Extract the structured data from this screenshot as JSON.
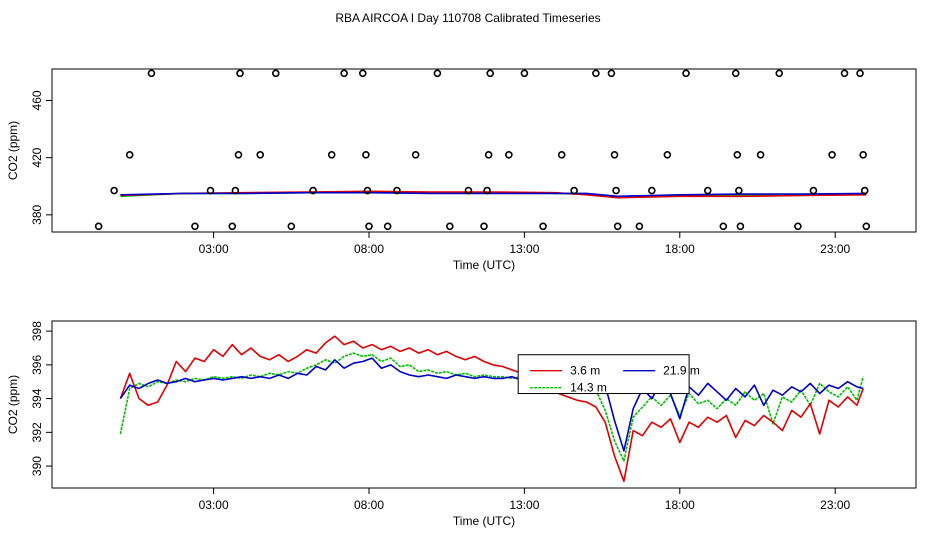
{
  "title": "RBA AIRCOA I  Day 110708  Calibrated Timeseries",
  "colors": {
    "red": "#e00000",
    "green": "#00c000",
    "blue": "#0000c8",
    "black": "#000000"
  },
  "chart_data": [
    {
      "type": "line",
      "name": "raw-panel",
      "xlabel": "Time (UTC)",
      "ylabel": "CO2 (ppm)",
      "xlim": [
        -2.2,
        25.6
      ],
      "ylim": [
        368,
        482
      ],
      "xticks": [
        3,
        8,
        13,
        18,
        23
      ],
      "xtick_labels": [
        "03:00",
        "08:00",
        "13:00",
        "18:00",
        "23:00"
      ],
      "yticks": [
        380,
        420,
        460
      ],
      "ytick_labels": [
        "380",
        "420",
        "460"
      ],
      "marker_series": {
        "name": "calibration standards",
        "marker": "open-circle",
        "points": [
          [
            -0.7,
            372
          ],
          [
            -0.2,
            397
          ],
          [
            0.3,
            422
          ],
          [
            1.0,
            479
          ],
          [
            2.4,
            372
          ],
          [
            2.9,
            397
          ],
          [
            3.6,
            372
          ],
          [
            3.7,
            397
          ],
          [
            3.8,
            422
          ],
          [
            3.85,
            479
          ],
          [
            4.5,
            422
          ],
          [
            5.0,
            479
          ],
          [
            5.5,
            372
          ],
          [
            6.2,
            397
          ],
          [
            6.8,
            422
          ],
          [
            7.2,
            479
          ],
          [
            7.8,
            479
          ],
          [
            7.9,
            422
          ],
          [
            7.95,
            397
          ],
          [
            8.0,
            372
          ],
          [
            8.9,
            397
          ],
          [
            8.6,
            372
          ],
          [
            9.5,
            422
          ],
          [
            10.2,
            479
          ],
          [
            10.6,
            372
          ],
          [
            11.2,
            397
          ],
          [
            11.7,
            372
          ],
          [
            11.8,
            397
          ],
          [
            11.85,
            422
          ],
          [
            11.9,
            479
          ],
          [
            12.5,
            422
          ],
          [
            13.0,
            479
          ],
          [
            13.6,
            372
          ],
          [
            14.2,
            422
          ],
          [
            14.6,
            397
          ],
          [
            15.3,
            479
          ],
          [
            15.8,
            479
          ],
          [
            15.9,
            422
          ],
          [
            15.95,
            397
          ],
          [
            16.0,
            372
          ],
          [
            16.7,
            372
          ],
          [
            17.1,
            397
          ],
          [
            17.6,
            422
          ],
          [
            18.2,
            479
          ],
          [
            18.9,
            397
          ],
          [
            19.4,
            372
          ],
          [
            19.8,
            479
          ],
          [
            19.85,
            422
          ],
          [
            19.9,
            397
          ],
          [
            19.95,
            372
          ],
          [
            20.6,
            422
          ],
          [
            21.2,
            479
          ],
          [
            21.8,
            372
          ],
          [
            22.3,
            397
          ],
          [
            22.9,
            422
          ],
          [
            23.3,
            479
          ],
          [
            23.8,
            479
          ],
          [
            23.9,
            422
          ],
          [
            23.95,
            397
          ],
          [
            24.0,
            372
          ]
        ]
      },
      "series": [
        {
          "name": "3.6 m",
          "color": "red",
          "x": [
            0,
            2,
            4,
            6,
            8,
            10,
            12,
            14,
            15,
            16,
            18,
            20,
            22,
            24
          ],
          "y": [
            393.5,
            395,
            395.5,
            396,
            396.5,
            396,
            396,
            395.5,
            394,
            392,
            393,
            393,
            393.5,
            394
          ]
        },
        {
          "name": "14.3 m",
          "color": "green",
          "x": [
            0,
            2,
            4,
            6,
            8,
            10,
            12,
            14,
            15,
            16,
            18,
            20,
            22,
            24
          ],
          "y": [
            393,
            395,
            395,
            395.5,
            396,
            395.5,
            395.5,
            395,
            394.5,
            392,
            394,
            394,
            394,
            394.5
          ]
        },
        {
          "name": "21.9 m",
          "color": "blue",
          "x": [
            0,
            2,
            4,
            6,
            8,
            10,
            12,
            14,
            15,
            16,
            18,
            20,
            22,
            24
          ],
          "y": [
            394,
            395,
            395,
            395.5,
            395.5,
            395,
            395,
            395,
            395,
            393,
            394,
            394.5,
            394.5,
            395
          ]
        }
      ]
    },
    {
      "type": "line",
      "name": "calibrated-panel",
      "xlabel": "Time (UTC)",
      "ylabel": "CO2 (ppm)",
      "xlim": [
        -2.2,
        25.6
      ],
      "ylim": [
        388.7,
        398.6
      ],
      "xticks": [
        3,
        8,
        13,
        18,
        23
      ],
      "xtick_labels": [
        "03:00",
        "08:00",
        "13:00",
        "18:00",
        "23:00"
      ],
      "yticks": [
        390,
        392,
        394,
        396,
        398
      ],
      "ytick_labels": [
        "390",
        "392",
        "394",
        "396",
        "398"
      ],
      "legend": {
        "position": "center-right",
        "entries": [
          "3.6 m",
          "21.9 m",
          "14.3 m"
        ]
      },
      "series": [
        {
          "name": "3.6 m",
          "color": "red",
          "x": [
            0,
            0.3,
            0.6,
            0.9,
            1.2,
            1.5,
            1.8,
            2.1,
            2.4,
            2.7,
            3.0,
            3.3,
            3.6,
            3.9,
            4.2,
            4.5,
            4.8,
            5.1,
            5.4,
            5.7,
            6.0,
            6.3,
            6.6,
            6.9,
            7.2,
            7.5,
            7.8,
            8.1,
            8.4,
            8.7,
            9.0,
            9.3,
            9.6,
            9.9,
            10.2,
            10.5,
            10.8,
            11.1,
            11.4,
            11.7,
            12.0,
            12.3,
            12.6,
            12.9,
            13.2,
            13.5,
            13.8,
            14.1,
            14.4,
            14.7,
            15.0,
            15.3,
            15.6,
            15.9,
            16.2,
            16.5,
            16.8,
            17.1,
            17.4,
            17.7,
            18.0,
            18.3,
            18.6,
            18.9,
            19.2,
            19.5,
            19.8,
            20.1,
            20.4,
            20.7,
            21.0,
            21.3,
            21.6,
            21.9,
            22.2,
            22.5,
            22.8,
            23.1,
            23.4,
            23.7,
            23.9
          ],
          "y": [
            394.0,
            395.5,
            394.0,
            393.6,
            393.8,
            394.8,
            396.2,
            395.6,
            396.4,
            396.2,
            396.9,
            396.5,
            397.2,
            396.6,
            397.0,
            396.5,
            396.3,
            396.6,
            396.2,
            396.5,
            396.9,
            396.7,
            397.3,
            397.7,
            397.2,
            397.4,
            397.0,
            397.2,
            396.9,
            397.1,
            396.8,
            397.0,
            396.7,
            396.9,
            396.6,
            396.8,
            396.5,
            396.3,
            396.5,
            396.2,
            396.0,
            395.9,
            395.7,
            395.5,
            395.3,
            395.1,
            394.6,
            394.3,
            394.1,
            393.9,
            393.8,
            393.5,
            392.6,
            390.6,
            389.1,
            392.1,
            391.8,
            392.6,
            392.3,
            392.8,
            391.4,
            392.6,
            392.3,
            392.9,
            392.6,
            393.0,
            391.7,
            392.7,
            392.4,
            393.0,
            392.6,
            392.1,
            393.3,
            392.9,
            393.7,
            391.9,
            393.9,
            393.5,
            394.1,
            393.6,
            394.6
          ]
        },
        {
          "name": "14.3 m",
          "color": "green",
          "x": [
            0,
            0.3,
            0.6,
            0.9,
            1.2,
            1.5,
            1.8,
            2.1,
            2.4,
            2.7,
            3.0,
            3.3,
            3.6,
            3.9,
            4.2,
            4.5,
            4.8,
            5.1,
            5.4,
            5.7,
            6.0,
            6.3,
            6.6,
            6.9,
            7.2,
            7.5,
            7.8,
            8.1,
            8.4,
            8.7,
            9.0,
            9.3,
            9.6,
            9.9,
            10.2,
            10.5,
            10.8,
            11.1,
            11.4,
            11.7,
            12.0,
            12.3,
            12.6,
            12.9,
            13.2,
            13.5,
            13.8,
            14.1,
            14.4,
            14.7,
            15.0,
            15.3,
            15.6,
            15.9,
            16.2,
            16.5,
            16.8,
            17.1,
            17.4,
            17.7,
            18.0,
            18.3,
            18.6,
            18.9,
            19.2,
            19.5,
            19.8,
            20.1,
            20.4,
            20.7,
            21.0,
            21.3,
            21.6,
            21.9,
            22.2,
            22.5,
            22.8,
            23.1,
            23.4,
            23.7,
            23.9
          ],
          "y": [
            391.9,
            394.6,
            394.9,
            394.7,
            395.0,
            394.9,
            395.1,
            395.0,
            395.2,
            395.1,
            395.3,
            395.2,
            395.3,
            395.2,
            395.4,
            395.3,
            395.5,
            395.4,
            395.6,
            395.5,
            395.8,
            396.0,
            396.3,
            396.1,
            396.5,
            396.7,
            396.5,
            396.6,
            396.2,
            396.4,
            395.9,
            396.0,
            395.6,
            395.7,
            395.5,
            395.6,
            395.4,
            395.5,
            395.3,
            395.4,
            395.3,
            395.3,
            395.2,
            395.3,
            395.2,
            395.3,
            395.2,
            395.2,
            395.1,
            395.2,
            395.0,
            394.5,
            393.3,
            391.5,
            390.3,
            392.9,
            393.5,
            394.1,
            393.6,
            394.2,
            393.0,
            394.3,
            393.7,
            393.9,
            393.4,
            394.0,
            393.6,
            394.4,
            393.9,
            394.3,
            392.5,
            394.1,
            393.8,
            394.5,
            393.6,
            394.9,
            394.4,
            394.1,
            394.7,
            393.9,
            395.3
          ]
        },
        {
          "name": "21.9 m",
          "color": "blue",
          "x": [
            0,
            0.3,
            0.6,
            0.9,
            1.2,
            1.5,
            1.8,
            2.1,
            2.4,
            2.7,
            3.0,
            3.3,
            3.6,
            3.9,
            4.2,
            4.5,
            4.8,
            5.1,
            5.4,
            5.7,
            6.0,
            6.3,
            6.6,
            6.9,
            7.2,
            7.5,
            7.8,
            8.1,
            8.4,
            8.7,
            9.0,
            9.3,
            9.6,
            9.9,
            10.2,
            10.5,
            10.8,
            11.1,
            11.4,
            11.7,
            12.0,
            12.3,
            12.6,
            12.9,
            13.2,
            13.5,
            13.8,
            14.1,
            14.4,
            14.7,
            15.0,
            15.3,
            15.6,
            15.9,
            16.2,
            16.5,
            16.8,
            17.1,
            17.4,
            17.7,
            18.0,
            18.3,
            18.6,
            18.9,
            19.2,
            19.5,
            19.8,
            20.1,
            20.4,
            20.7,
            21.0,
            21.3,
            21.6,
            21.9,
            22.2,
            22.5,
            22.8,
            23.1,
            23.4,
            23.7,
            23.9
          ],
          "y": [
            394.0,
            394.8,
            394.6,
            394.9,
            395.1,
            394.9,
            395.0,
            395.2,
            395.0,
            395.1,
            395.2,
            395.1,
            395.2,
            395.3,
            395.2,
            395.3,
            395.2,
            395.4,
            395.2,
            395.5,
            395.4,
            395.9,
            395.7,
            396.3,
            395.8,
            396.1,
            396.2,
            396.4,
            395.8,
            396.0,
            395.6,
            395.4,
            395.3,
            395.4,
            395.3,
            395.2,
            395.4,
            395.3,
            395.2,
            395.3,
            395.2,
            395.2,
            395.3,
            395.1,
            395.2,
            395.1,
            395.3,
            395.2,
            395.4,
            395.3,
            395.6,
            395.5,
            394.8,
            392.7,
            390.9,
            393.4,
            394.6,
            394.0,
            395.0,
            394.3,
            392.8,
            394.7,
            394.2,
            394.9,
            394.4,
            393.9,
            394.6,
            394.1,
            394.8,
            393.6,
            394.5,
            394.2,
            394.7,
            394.4,
            394.9,
            394.3,
            394.8,
            394.6,
            395.0,
            394.7,
            394.6
          ]
        }
      ]
    }
  ]
}
